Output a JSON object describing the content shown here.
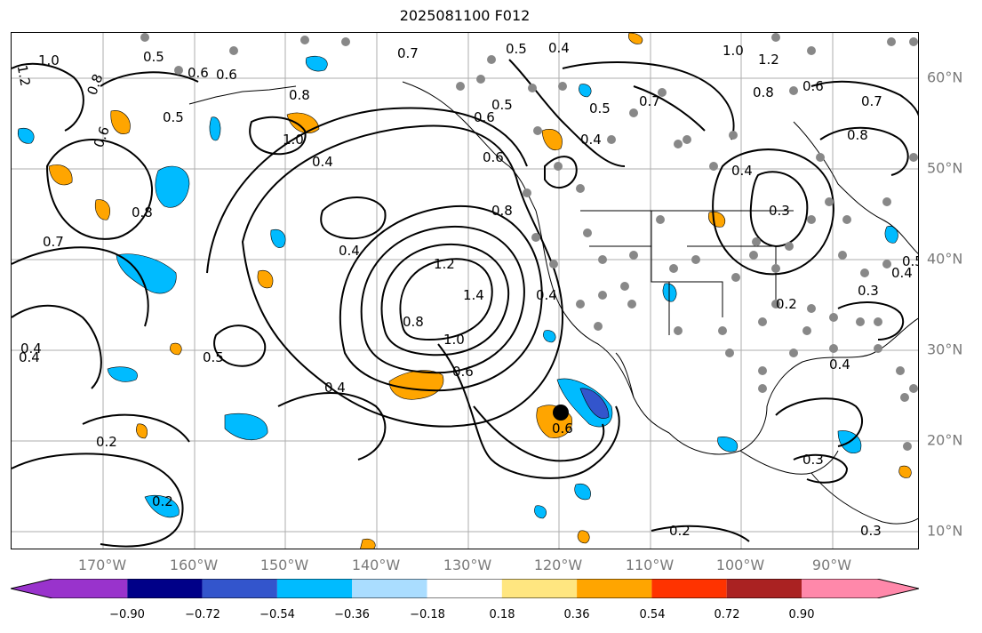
{
  "title": "2025081100 F012",
  "lat_labels": [
    "60°N",
    "50°N",
    "40°N",
    "30°N",
    "20°N",
    "10°N"
  ],
  "lon_labels": [
    "170°W",
    "160°W",
    "150°W",
    "140°W",
    "130°W",
    "120°W",
    "110°W",
    "100°W",
    "90°W"
  ],
  "colorbar": {
    "ticks": [
      "−0.90",
      "−0.72",
      "−0.54",
      "−0.36",
      "−0.18",
      "0.18",
      "0.36",
      "0.54",
      "0.72",
      "0.90"
    ],
    "colors": [
      "#9933cc",
      "#000088",
      "#3355cc",
      "#00bbff",
      "#aaddff",
      "#ffffff",
      "#ffe680",
      "#ffa500",
      "#ff3300",
      "#aa2222",
      "#ff88aa"
    ]
  },
  "contour_labels": [
    "1.2",
    "1.0",
    "0.8",
    "0.5",
    "0.6",
    "0.7",
    "0.5",
    "0.4",
    "0.5",
    "0.7",
    "0.8",
    "1.0",
    "1.2",
    "0.6",
    "0.8",
    "0.6",
    "0.7",
    "0.8",
    "0.6",
    "0.5",
    "0.5",
    "0.4",
    "0.4",
    "0.6",
    "1.0",
    "0.8",
    "0.6",
    "0.4",
    "0.3",
    "0.4",
    "0.4",
    "0.8",
    "0.7",
    "1.2",
    "1.4",
    "0.8",
    "1.0",
    "0.6",
    "0.4",
    "0.5",
    "0.6",
    "0.4",
    "0.3",
    "0.2",
    "0.3",
    "0.4",
    "0.2",
    "0.2",
    "0.3",
    "0.2",
    "0.4",
    "0.5",
    "0.4"
  ],
  "colors": {
    "axis_label": "#7a7a7a",
    "contour": "#000000",
    "grid": "#999999",
    "station": "#888888",
    "blue": "#00bbff",
    "orange": "#ffa500"
  }
}
